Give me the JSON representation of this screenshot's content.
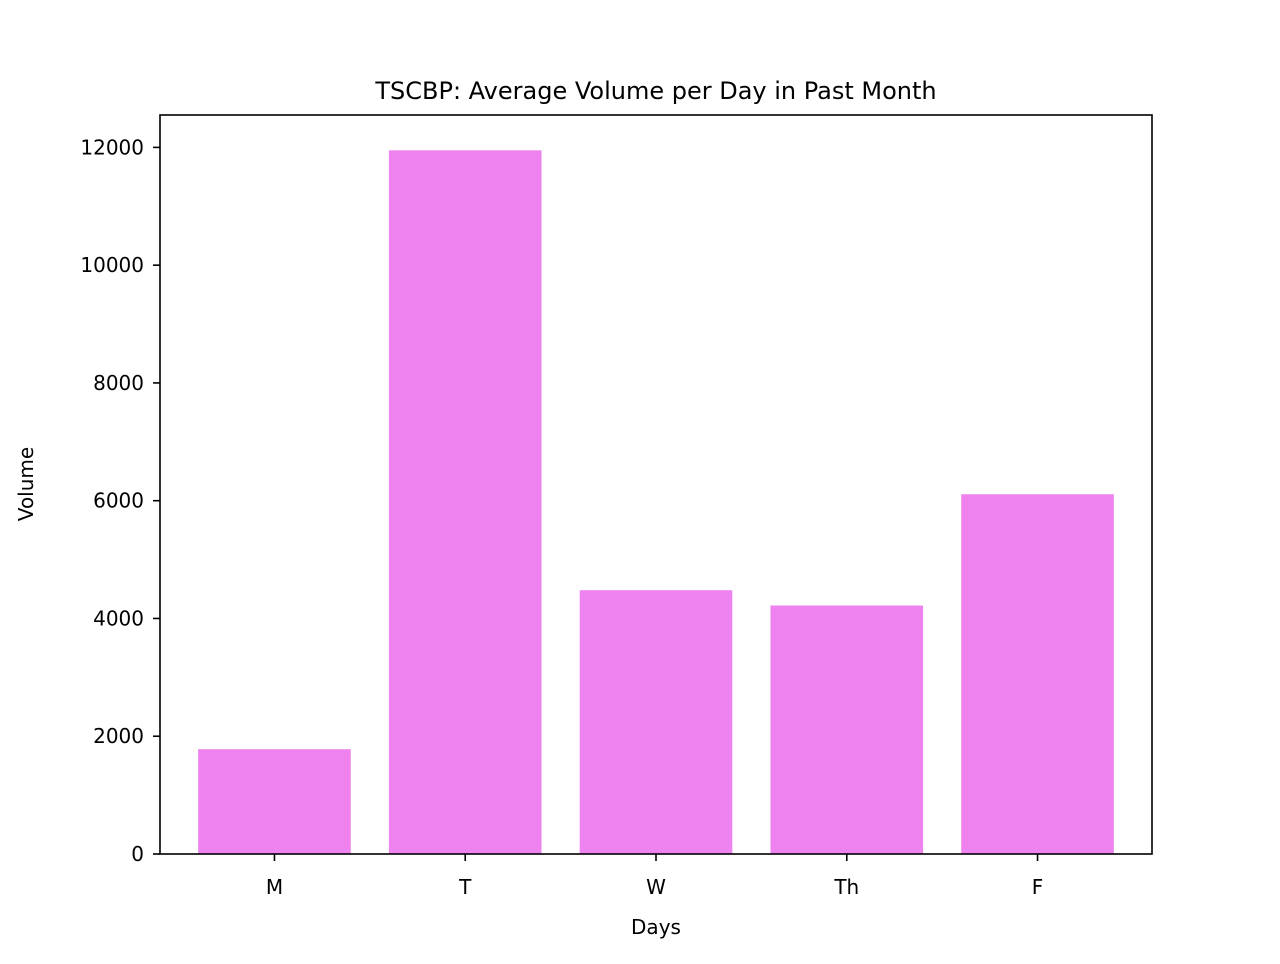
{
  "chart_data": {
    "type": "bar",
    "title": "TSCBP: Average Volume per Day in Past Month",
    "xlabel": "Days",
    "ylabel": "Volume",
    "categories": [
      "M",
      "T",
      "W",
      "Th",
      "F"
    ],
    "values": [
      1780,
      11950,
      4480,
      4220,
      6110
    ],
    "ylim": [
      0,
      12550
    ],
    "yticks": [
      0,
      2000,
      4000,
      6000,
      8000,
      10000,
      12000
    ],
    "ytick_labels": [
      "0",
      "2000",
      "4000",
      "6000",
      "8000",
      "10000",
      "12000"
    ],
    "bar_color": "#ee82ee",
    "grid": false,
    "legend": "none"
  }
}
